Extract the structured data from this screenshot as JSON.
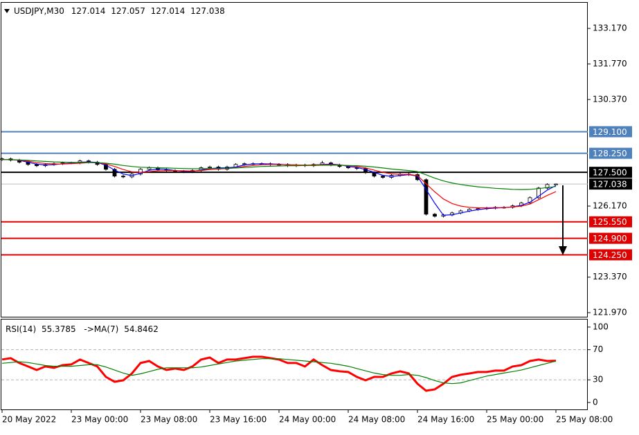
{
  "chart_data": [
    {
      "type": "candlestick",
      "title": "USDJPY,M30",
      "quote": {
        "open": 127.014,
        "high": 127.057,
        "low": 127.014,
        "close": 127.038
      },
      "xlim": [
        -0.08,
        67.6
      ],
      "ylim": [
        121.81,
        134.18
      ],
      "yticks": [
        {
          "value": 133.17,
          "label": "133.170"
        },
        {
          "value": 131.77,
          "label": "131.770"
        },
        {
          "value": 130.37,
          "label": "130.370"
        },
        {
          "value": 126.17,
          "label": "126.170"
        },
        {
          "value": 123.37,
          "label": "123.370"
        },
        {
          "value": 121.97,
          "label": "121.970"
        }
      ],
      "open": [
        128.0,
        128.03,
        127.98,
        127.9,
        127.81,
        127.76,
        127.81,
        127.84,
        127.87,
        127.87,
        127.95,
        127.9,
        127.81,
        127.62,
        127.35,
        127.32,
        127.43,
        127.62,
        127.68,
        127.6,
        127.57,
        127.54,
        127.52,
        127.57,
        127.68,
        127.71,
        127.62,
        127.71,
        127.81,
        127.84,
        127.84,
        127.84,
        127.81,
        127.81,
        127.76,
        127.79,
        127.76,
        127.81,
        127.87,
        127.79,
        127.73,
        127.68,
        127.65,
        127.49,
        127.35,
        127.3,
        127.38,
        127.43,
        127.41,
        127.21,
        125.85,
        125.77,
        125.82,
        125.9,
        125.98,
        126.04,
        126.07,
        126.09,
        126.12,
        126.12,
        126.18,
        126.29,
        126.5,
        126.88,
        127.014
      ],
      "high": [
        128.08,
        128.08,
        128.03,
        127.95,
        127.86,
        127.86,
        127.89,
        127.92,
        127.92,
        128.0,
        128.0,
        127.95,
        127.86,
        127.67,
        127.4,
        127.48,
        127.67,
        127.73,
        127.73,
        127.65,
        127.62,
        127.59,
        127.62,
        127.73,
        127.76,
        127.76,
        127.76,
        127.86,
        127.89,
        127.89,
        127.89,
        127.89,
        127.86,
        127.86,
        127.84,
        127.84,
        127.86,
        127.95,
        127.92,
        127.84,
        127.78,
        127.73,
        127.7,
        127.54,
        127.4,
        127.43,
        127.48,
        127.48,
        127.46,
        127.26,
        125.9,
        125.87,
        125.95,
        126.03,
        126.09,
        126.12,
        126.14,
        126.17,
        126.17,
        126.23,
        126.34,
        126.55,
        126.93,
        127.07,
        127.057
      ],
      "low": [
        127.95,
        127.93,
        127.85,
        127.76,
        127.71,
        127.71,
        127.76,
        127.79,
        127.82,
        127.82,
        127.85,
        127.76,
        127.57,
        127.3,
        127.27,
        127.27,
        127.38,
        127.57,
        127.55,
        127.52,
        127.49,
        127.47,
        127.47,
        127.52,
        127.63,
        127.57,
        127.57,
        127.66,
        127.76,
        127.79,
        127.79,
        127.76,
        127.76,
        127.71,
        127.71,
        127.71,
        127.71,
        127.76,
        127.74,
        127.68,
        127.63,
        127.6,
        127.44,
        127.3,
        127.25,
        127.25,
        127.33,
        127.36,
        127.16,
        125.8,
        125.72,
        125.72,
        125.77,
        125.85,
        125.93,
        125.99,
        126.02,
        126.04,
        126.07,
        126.07,
        126.13,
        126.24,
        126.45,
        126.83,
        127.014
      ],
      "close": [
        128.03,
        127.98,
        127.9,
        127.81,
        127.76,
        127.81,
        127.84,
        127.87,
        127.87,
        127.95,
        127.9,
        127.81,
        127.62,
        127.35,
        127.32,
        127.43,
        127.62,
        127.68,
        127.6,
        127.57,
        127.54,
        127.52,
        127.57,
        127.68,
        127.71,
        127.62,
        127.71,
        127.81,
        127.84,
        127.84,
        127.84,
        127.81,
        127.81,
        127.76,
        127.79,
        127.76,
        127.81,
        127.87,
        127.79,
        127.73,
        127.68,
        127.65,
        127.49,
        127.35,
        127.3,
        127.38,
        127.43,
        127.41,
        127.21,
        125.85,
        125.77,
        125.82,
        125.9,
        125.98,
        126.04,
        126.07,
        126.09,
        126.12,
        126.12,
        126.18,
        126.29,
        126.5,
        126.88,
        127.02,
        127.038
      ],
      "series": [
        {
          "color": "#0000ff",
          "values": [
            128.0,
            128.0,
            127.97,
            127.9,
            127.82,
            127.79,
            127.8,
            127.84,
            127.86,
            127.9,
            127.91,
            127.89,
            127.78,
            127.59,
            127.43,
            127.37,
            127.46,
            127.58,
            127.63,
            127.62,
            127.57,
            127.54,
            127.54,
            127.59,
            127.65,
            127.67,
            127.68,
            127.71,
            127.79,
            127.83,
            127.84,
            127.83,
            127.82,
            127.79,
            127.79,
            127.77,
            127.79,
            127.81,
            127.82,
            127.8,
            127.73,
            127.69,
            127.61,
            127.5,
            127.38,
            127.34,
            127.37,
            127.41,
            127.35,
            126.82,
            126.28,
            125.81,
            125.83,
            125.9,
            125.97,
            126.03,
            126.07,
            126.09,
            126.11,
            126.14,
            126.2,
            126.32,
            126.56,
            126.8,
            126.98
          ]
        },
        {
          "color": "#ff0000",
          "values": [
            128.0,
            128.0,
            127.98,
            127.94,
            127.88,
            127.85,
            127.83,
            127.83,
            127.84,
            127.86,
            127.88,
            127.88,
            127.83,
            127.73,
            127.61,
            127.52,
            127.5,
            127.53,
            127.56,
            127.57,
            127.57,
            127.56,
            127.55,
            127.57,
            127.61,
            127.63,
            127.65,
            127.68,
            127.73,
            127.77,
            127.8,
            127.81,
            127.81,
            127.8,
            127.79,
            127.78,
            127.79,
            127.8,
            127.8,
            127.79,
            127.76,
            127.73,
            127.67,
            127.59,
            127.5,
            127.44,
            127.42,
            127.42,
            127.37,
            127.05,
            126.73,
            126.45,
            126.27,
            126.17,
            126.12,
            126.1,
            126.1,
            126.11,
            126.11,
            126.13,
            126.17,
            126.25,
            126.42,
            126.59,
            126.74
          ]
        },
        {
          "color": "#008000",
          "values": [
            128.0,
            128.0,
            127.99,
            127.97,
            127.95,
            127.93,
            127.91,
            127.9,
            127.89,
            127.89,
            127.89,
            127.88,
            127.86,
            127.82,
            127.77,
            127.73,
            127.7,
            127.69,
            127.68,
            127.67,
            127.66,
            127.65,
            127.64,
            127.64,
            127.65,
            127.65,
            127.66,
            127.67,
            127.69,
            127.71,
            127.73,
            127.74,
            127.75,
            127.76,
            127.76,
            127.77,
            127.77,
            127.78,
            127.78,
            127.78,
            127.77,
            127.76,
            127.74,
            127.71,
            127.67,
            127.63,
            127.6,
            127.57,
            127.53,
            127.4,
            127.27,
            127.16,
            127.08,
            127.02,
            126.97,
            126.93,
            126.9,
            126.87,
            126.85,
            126.83,
            126.82,
            126.83,
            126.86,
            126.9,
            126.94
          ]
        }
      ],
      "levels": [
        {
          "value": 129.1,
          "label": "129.100",
          "color": "#4f81bd"
        },
        {
          "value": 128.25,
          "label": "128.250",
          "color": "#4f81bd"
        },
        {
          "value": 127.5,
          "label": "127.500",
          "color": "#000000"
        },
        {
          "value": 127.038,
          "color": "#000000",
          "line_color": "#c0c0c0"
        },
        {
          "value": 125.55,
          "label": "125.550",
          "color": "#e00000"
        },
        {
          "value": 124.9,
          "label": "124.900",
          "color": "#e00000"
        },
        {
          "value": 124.25,
          "label": "124.250",
          "color": "#e00000"
        }
      ]
    },
    {
      "type": "line",
      "title": "RSI(14)",
      "rsi_value": 55.3785,
      "ma_label": "->MA(7)",
      "ma_value": 54.8462,
      "xlim": [
        -0.08,
        67.6
      ],
      "xticks": [
        {
          "value": 0,
          "label": "20 May 2022"
        },
        {
          "value": 8,
          "label": "23 May 00:00"
        },
        {
          "value": 16,
          "label": "23 May 08:00"
        },
        {
          "value": 24,
          "label": "23 May 16:00"
        },
        {
          "value": 32,
          "label": "24 May 00:00"
        },
        {
          "value": 40,
          "label": "24 May 08:00"
        },
        {
          "value": 48,
          "label": "24 May 16:00"
        },
        {
          "value": 56,
          "label": "25 May 00:00"
        },
        {
          "value": 64,
          "label": "25 May 08:00"
        }
      ],
      "ylim": [
        -9.2,
        110
      ],
      "yticks": [
        100,
        70,
        30,
        0
      ],
      "levels": [
        70,
        30
      ],
      "series": [
        {
          "color": "#ff0000",
          "values": [
            57,
            58.7,
            52.3,
            47.7,
            43.1,
            47.7,
            45.9,
            49.5,
            50.5,
            56.9,
            52.3,
            47.7,
            33.9,
            27.5,
            29.4,
            38.5,
            52.3,
            55,
            47.7,
            43.1,
            45,
            43.1,
            47.7,
            56.9,
            59.6,
            52.3,
            56.9,
            56.9,
            58.7,
            60.6,
            60.6,
            58.7,
            56.9,
            52.3,
            52.3,
            47.7,
            56.9,
            49.5,
            43.1,
            41.3,
            40.4,
            33.9,
            29.4,
            33.9,
            33.9,
            38.5,
            41.3,
            38.5,
            24.8,
            15.6,
            17.4,
            24.8,
            33.9,
            36.7,
            38.5,
            40.4,
            40.4,
            42.2,
            42.2,
            47.7,
            49.5,
            55,
            56.9,
            55,
            55.3785
          ]
        },
        {
          "color": "#008000",
          "values": [
            52,
            53,
            54,
            53,
            51,
            49,
            48,
            48,
            48,
            49,
            50,
            50,
            47,
            43,
            39,
            36,
            38,
            41,
            44,
            46,
            46,
            46,
            46,
            47,
            49,
            51,
            53,
            55,
            56,
            57,
            58,
            58,
            58,
            57,
            56,
            55,
            54,
            53,
            52,
            50,
            48,
            45,
            42,
            39,
            37,
            36,
            36,
            37,
            36,
            33,
            29,
            26,
            25,
            26,
            29,
            32,
            35,
            37,
            39,
            41,
            43,
            46,
            49,
            52,
            54.8462
          ]
        }
      ]
    }
  ]
}
